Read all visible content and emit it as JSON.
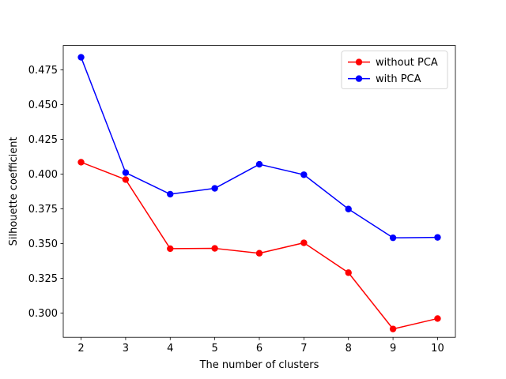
{
  "chart_data": {
    "type": "line",
    "title": "",
    "xlabel": "The number of clusters",
    "ylabel": "Silhouette coefficient",
    "x": [
      2,
      3,
      4,
      5,
      6,
      7,
      8,
      9,
      10
    ],
    "xlim": [
      1.6,
      10.4
    ],
    "ylim": [
      0.2825,
      0.4925
    ],
    "xticks": [
      "2",
      "3",
      "4",
      "5",
      "6",
      "7",
      "8",
      "9",
      "10"
    ],
    "yticks": [
      "0.300",
      "0.325",
      "0.350",
      "0.375",
      "0.400",
      "0.425",
      "0.450",
      "0.475"
    ],
    "grid": false,
    "legend_position": "top-right",
    "series": [
      {
        "name": "without PCA",
        "color": "#ff0000",
        "marker": "circle",
        "values": [
          0.4085,
          0.396,
          0.3463,
          0.3465,
          0.343,
          0.3505,
          0.329,
          0.2885,
          0.296
        ]
      },
      {
        "name": "with PCA",
        "color": "#0000ff",
        "marker": "circle",
        "values": [
          0.484,
          0.401,
          0.3855,
          0.3897,
          0.407,
          0.3995,
          0.3748,
          0.3541,
          0.3544
        ]
      }
    ]
  }
}
